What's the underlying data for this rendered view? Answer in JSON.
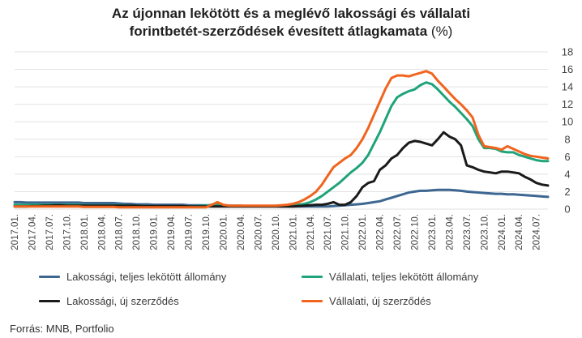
{
  "title_line1": "Az újonnan lekötött és a meglévő lakossági és vállalati",
  "title_line2_main": "forintbetét-szerződések évesített átlagkamata",
  "title_line2_unit": "(%)",
  "source": "Forrás: MNB, Portfolio",
  "colors": {
    "lakossagi_teljes": "#3d6791",
    "vallalati_teljes": "#1fa37a",
    "lakossagi_uj": "#1a1a1a",
    "vallalati_uj": "#f0641e",
    "grid": "#e2e2e2",
    "axis_text": "#444444"
  },
  "chart_data": {
    "type": "line",
    "title": "Az újonnan lekötött és a meglévő lakossági és vállalati forintbetét-szerződések évesített átlagkamata (%)",
    "xlabel": "",
    "ylabel": "",
    "ylim": [
      0,
      18
    ],
    "yticks": [
      0,
      2,
      4,
      6,
      8,
      10,
      12,
      14,
      16,
      18
    ],
    "y_axis_side": "right",
    "grid": "horizontal",
    "x_tick_labels": [
      "2017.01.",
      "2017.04.",
      "2017.07.",
      "2017.10.",
      "2018.01.",
      "2018.04.",
      "2018.07.",
      "2018.10.",
      "2019.01.",
      "2019.04.",
      "2019.07.",
      "2019.10.",
      "2020.01.",
      "2020.04.",
      "2020.07.",
      "2020.10.",
      "2021.01.",
      "2021.04.",
      "2021.07.",
      "2021.10.",
      "2022.01.",
      "2022.04.",
      "2022.07.",
      "2022.10.",
      "2023.01.",
      "2023.04.",
      "2023.07.",
      "2023.10.",
      "2024.01.",
      "2024.04.",
      "2024.07."
    ],
    "n_points": 93,
    "series": [
      {
        "name": "Lakossági, teljes lekötött állomány",
        "color_key": "lakossagi_teljes",
        "values": [
          0.8,
          0.8,
          0.75,
          0.75,
          0.75,
          0.75,
          0.75,
          0.75,
          0.75,
          0.75,
          0.75,
          0.75,
          0.7,
          0.7,
          0.7,
          0.7,
          0.7,
          0.7,
          0.65,
          0.6,
          0.6,
          0.55,
          0.55,
          0.55,
          0.5,
          0.5,
          0.5,
          0.5,
          0.5,
          0.5,
          0.45,
          0.45,
          0.45,
          0.45,
          0.4,
          0.4,
          0.4,
          0.4,
          0.4,
          0.4,
          0.35,
          0.35,
          0.35,
          0.35,
          0.35,
          0.35,
          0.3,
          0.3,
          0.3,
          0.3,
          0.3,
          0.3,
          0.3,
          0.3,
          0.3,
          0.35,
          0.4,
          0.45,
          0.5,
          0.55,
          0.6,
          0.7,
          0.8,
          0.9,
          1.1,
          1.3,
          1.5,
          1.7,
          1.9,
          2.0,
          2.1,
          2.1,
          2.15,
          2.2,
          2.2,
          2.2,
          2.15,
          2.1,
          2.0,
          1.95,
          1.9,
          1.85,
          1.8,
          1.75,
          1.75,
          1.7,
          1.7,
          1.65,
          1.6,
          1.55,
          1.5,
          1.45,
          1.4
        ]
      },
      {
        "name": "Vállalati, teljes lekötött állomány",
        "color_key": "vallalati_teljes",
        "values": [
          0.5,
          0.5,
          0.5,
          0.5,
          0.5,
          0.5,
          0.5,
          0.5,
          0.5,
          0.5,
          0.5,
          0.5,
          0.45,
          0.45,
          0.45,
          0.45,
          0.45,
          0.45,
          0.45,
          0.45,
          0.4,
          0.4,
          0.35,
          0.35,
          0.35,
          0.3,
          0.3,
          0.3,
          0.3,
          0.3,
          0.3,
          0.35,
          0.35,
          0.4,
          0.5,
          0.6,
          0.4,
          0.35,
          0.35,
          0.35,
          0.35,
          0.35,
          0.35,
          0.35,
          0.35,
          0.35,
          0.35,
          0.4,
          0.45,
          0.5,
          0.6,
          0.8,
          1.1,
          1.5,
          2.0,
          2.5,
          3.0,
          3.6,
          4.2,
          4.7,
          5.3,
          6.2,
          7.5,
          8.8,
          10.3,
          11.8,
          12.8,
          13.2,
          13.5,
          13.7,
          14.2,
          14.5,
          14.3,
          13.7,
          13.0,
          12.3,
          11.7,
          11.0,
          10.3,
          9.5,
          8.0,
          7.0,
          7.0,
          6.9,
          6.6,
          6.5,
          6.5,
          6.2,
          6.0,
          5.8,
          5.6,
          5.5,
          5.5
        ]
      },
      {
        "name": "Lakossági, új szerződés",
        "color_key": "lakossagi_uj",
        "values": [
          0.3,
          0.3,
          0.3,
          0.35,
          0.35,
          0.4,
          0.4,
          0.45,
          0.45,
          0.4,
          0.4,
          0.4,
          0.4,
          0.4,
          0.4,
          0.4,
          0.4,
          0.4,
          0.4,
          0.4,
          0.4,
          0.4,
          0.35,
          0.35,
          0.35,
          0.35,
          0.35,
          0.35,
          0.35,
          0.35,
          0.3,
          0.3,
          0.3,
          0.3,
          0.3,
          0.3,
          0.3,
          0.3,
          0.3,
          0.3,
          0.3,
          0.3,
          0.3,
          0.3,
          0.3,
          0.3,
          0.3,
          0.3,
          0.3,
          0.35,
          0.4,
          0.45,
          0.5,
          0.5,
          0.6,
          0.8,
          0.5,
          0.5,
          0.8,
          1.5,
          2.5,
          3.0,
          3.2,
          4.5,
          5.0,
          5.8,
          6.2,
          7.0,
          7.6,
          7.8,
          7.7,
          7.5,
          7.3,
          8.0,
          8.8,
          8.3,
          8.0,
          7.3,
          5.0,
          4.8,
          4.5,
          4.3,
          4.2,
          4.1,
          4.3,
          4.3,
          4.2,
          4.1,
          3.7,
          3.4,
          3.0,
          2.8,
          2.7
        ]
      },
      {
        "name": "Vállalati, új szerződés",
        "color_key": "vallalati_uj",
        "values": [
          0.3,
          0.3,
          0.3,
          0.3,
          0.3,
          0.3,
          0.3,
          0.3,
          0.3,
          0.3,
          0.3,
          0.3,
          0.25,
          0.25,
          0.25,
          0.25,
          0.25,
          0.25,
          0.2,
          0.2,
          0.2,
          0.2,
          0.2,
          0.2,
          0.2,
          0.2,
          0.2,
          0.2,
          0.2,
          0.2,
          0.2,
          0.2,
          0.2,
          0.2,
          0.5,
          0.8,
          0.5,
          0.4,
          0.4,
          0.4,
          0.4,
          0.4,
          0.4,
          0.4,
          0.4,
          0.4,
          0.45,
          0.5,
          0.6,
          0.8,
          1.1,
          1.5,
          2.0,
          2.8,
          3.8,
          4.8,
          5.3,
          5.8,
          6.2,
          7.0,
          8.0,
          9.3,
          10.8,
          12.3,
          13.8,
          15.0,
          15.3,
          15.3,
          15.2,
          15.4,
          15.6,
          15.8,
          15.5,
          14.7,
          14.0,
          13.3,
          12.6,
          12.0,
          11.3,
          10.5,
          8.5,
          7.2,
          7.1,
          7.0,
          6.8,
          7.2,
          6.9,
          6.6,
          6.3,
          6.1,
          6.0,
          5.9,
          5.8
        ]
      }
    ],
    "legend_position": "bottom"
  }
}
